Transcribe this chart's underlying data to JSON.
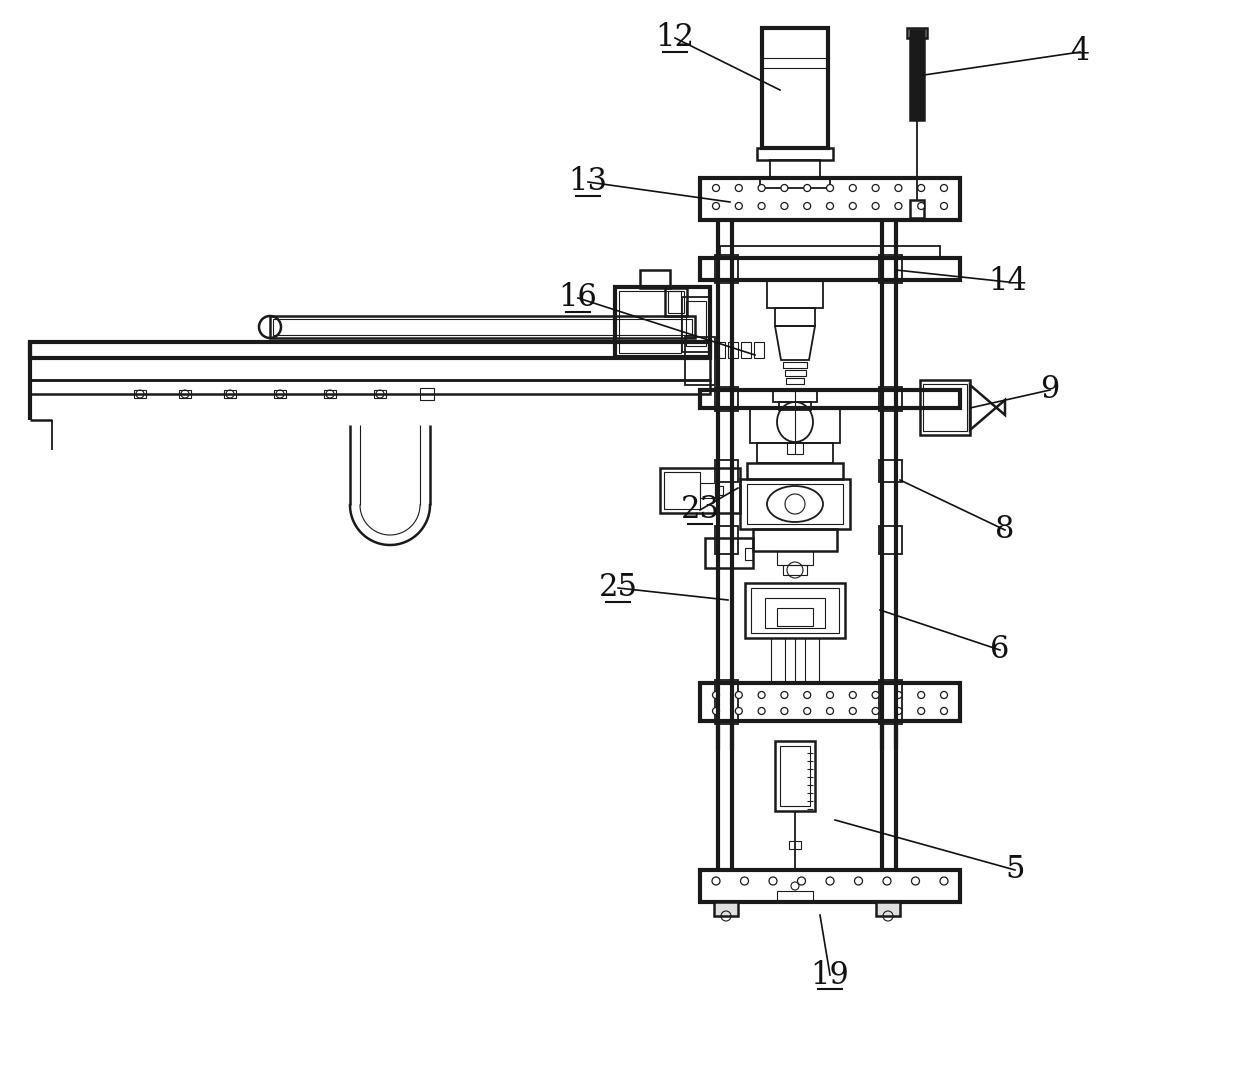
{
  "bg_color": "#ffffff",
  "line_color": "#1a1a1a",
  "label_color": "#111111",
  "fig_width": 12.4,
  "fig_height": 10.76,
  "dpi": 100
}
